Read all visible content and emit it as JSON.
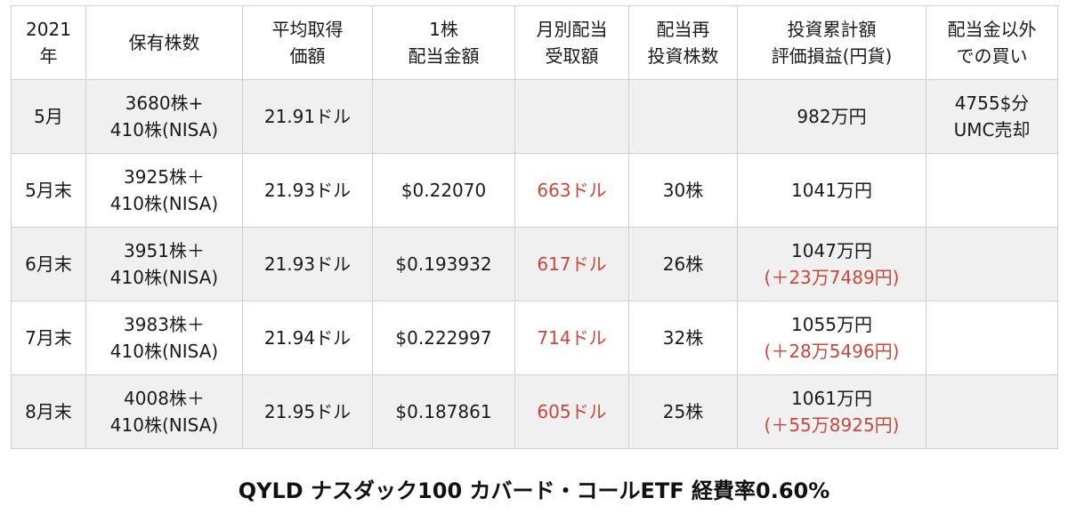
{
  "headers": [
    [
      "2021",
      "年"
    ],
    [
      "保有株数"
    ],
    [
      "平均取得",
      "価額"
    ],
    [
      "1株",
      "配当金額"
    ],
    [
      "月別配当",
      "受取額"
    ],
    [
      "配当再",
      "投資株数"
    ],
    [
      "投資累計額",
      "評価損益(円貨)"
    ],
    [
      "配当金以外",
      "での買い"
    ]
  ],
  "rows": [
    {
      "month": "5月",
      "shares": [
        "3680株+",
        "410株(NISA)"
      ],
      "avg_cost": "21.91ドル",
      "dividend_per_share": "",
      "monthly_dividend": "",
      "reinvest_shares": "",
      "investment_total": "982万円",
      "valuation_pl": "",
      "other_buys": [
        "4755$分",
        "UMC売却"
      ]
    },
    {
      "month": "5月末",
      "shares": [
        "3925株＋",
        "410株(NISA)"
      ],
      "avg_cost": "21.93ドル",
      "dividend_per_share": "$0.22070",
      "monthly_dividend": "663ドル",
      "reinvest_shares": "30株",
      "investment_total": "1041万円",
      "valuation_pl": "",
      "other_buys": [
        "",
        ""
      ]
    },
    {
      "month": "6月末",
      "shares": [
        "3951株＋",
        "410株(NISA)"
      ],
      "avg_cost": "21.93ドル",
      "dividend_per_share": "$0.193932",
      "monthly_dividend": "617ドル",
      "reinvest_shares": "26株",
      "investment_total": "1047万円",
      "valuation_pl": "(＋23万7489円)",
      "other_buys": [
        "",
        ""
      ]
    },
    {
      "month": "7月末",
      "shares": [
        "3983株＋",
        "410株(NISA)"
      ],
      "avg_cost": "21.94ドル",
      "dividend_per_share": "$0.222997",
      "monthly_dividend": "714ドル",
      "reinvest_shares": "32株",
      "investment_total": "1055万円",
      "valuation_pl": "(＋28万5496円)",
      "other_buys": [
        "",
        ""
      ]
    },
    {
      "month": "8月末",
      "shares": [
        "4008株＋",
        "410株(NISA)"
      ],
      "avg_cost": "21.95ドル",
      "dividend_per_share": "$0.187861",
      "monthly_dividend": "605ドル",
      "reinvest_shares": "25株",
      "investment_total": "1061万円",
      "valuation_pl": "(＋55万8925円)",
      "other_buys": [
        "",
        ""
      ]
    }
  ],
  "caption": "QYLD ナスダック100 カバード・コールETF  経費率0.60%",
  "colors": {
    "highlight": "#c8483b",
    "stripe": "#f0f0f0",
    "border": "#cfcfcf"
  }
}
